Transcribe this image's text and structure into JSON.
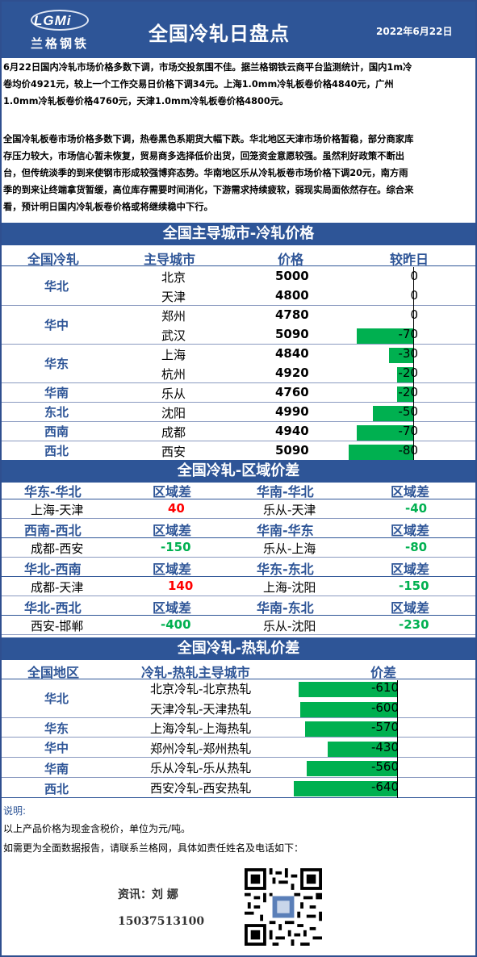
{
  "header": {
    "logo_text": "LGMi",
    "logo_cn": "兰格钢铁",
    "title": "全国冷轧日盘点",
    "date": "2022年6月22日"
  },
  "summary": {
    "p1_l1": "6月22日国内冷轧市场价格多数下调，市场交投氛围不佳。据兰格钢铁云商平台监测统计，国内1m冷",
    "p1_l2": "卷均价4921元，较上一个工作交易日价格下调34元。上海1.0mm冷轧板卷价格4840元，广州",
    "p1_l3": "1.0mm冷轧板卷价格4760元，天津1.0mm冷轧板卷价格4800元。",
    "p2_l1": "全国冷轧板卷市场价格多数下调，热卷黑色系期货大幅下跌。华北地区天津市场价格暂稳，部分商家库",
    "p2_l2": "存压力较大，市场信心暂未恢复，贸易商多选择低价出货，回笼资金意愿较强。虽然利好政策不断出",
    "p2_l3": "台，但传统淡季的到来使钢市形成较强博弈态势。华南地区乐从冷轧板卷市场价格下调20元，南方雨",
    "p2_l4": "季的到来让终端拿货暂缓，高位库存需要时间消化，下游需求持续疲软，弱现实局面依然存在。综合来",
    "p2_l5": "看，预计明日国内冷轧板卷价格或将继续稳中下行。"
  },
  "prices": {
    "section_title": "全国主导城市-冷轧价格",
    "headers": [
      "全国冷轧",
      "主导城市",
      "价格",
      "较昨日"
    ],
    "regions": [
      "华北",
      "华中",
      "华东",
      "华南",
      "东北",
      "西南",
      "西北"
    ],
    "rows": [
      {
        "city": "北京",
        "price": "5000",
        "change": "0",
        "value": 0
      },
      {
        "city": "天津",
        "price": "4800",
        "change": "0",
        "value": 0
      },
      {
        "city": "郑州",
        "price": "4780",
        "change": "0",
        "value": 0
      },
      {
        "city": "武汉",
        "price": "5090",
        "change": "-70",
        "value": -70
      },
      {
        "city": "上海",
        "price": "4840",
        "change": "-30",
        "value": -30
      },
      {
        "city": "杭州",
        "price": "4920",
        "change": "-20",
        "value": -20
      },
      {
        "city": "乐从",
        "price": "4760",
        "change": "-20",
        "value": -20
      },
      {
        "city": "沈阳",
        "price": "4990",
        "change": "-50",
        "value": -50
      },
      {
        "city": "成都",
        "price": "4940",
        "change": "-70",
        "value": -70
      },
      {
        "city": "西安",
        "price": "5090",
        "change": "-80",
        "value": -80
      }
    ]
  },
  "spreads": {
    "section_title": "全国冷轧-区域价差",
    "label": "区域差",
    "blocks": [
      {
        "left_head": "华东-华北",
        "left_pair": "上海-天津",
        "left_value": "40",
        "right_head": "华南-华北",
        "right_pair": "乐从-天津",
        "right_value": "-40"
      },
      {
        "left_head": "西南-西北",
        "left_pair": "成都-西安",
        "left_value": "-150",
        "right_head": "华南-华东",
        "right_pair": "乐从-上海",
        "right_value": "-80"
      },
      {
        "left_head": "华北-西南",
        "left_pair": "成都-天津",
        "left_value": "140",
        "right_head": "华东-东北",
        "right_pair": "上海-沈阳",
        "right_value": "-150"
      },
      {
        "left_head": "华北-西北",
        "left_pair": "西安-邯郸",
        "left_value": "-400",
        "right_head": "华南-东北",
        "right_pair": "乐从-沈阳",
        "right_value": "-230"
      }
    ],
    "colors": {
      "positive": "#ff0000",
      "negative": "#00b050"
    }
  },
  "hot_cold": {
    "section_title": "全国冷轧-热轧价差",
    "headers": [
      "全国地区",
      "冷轧-热轧主导城市",
      "价差"
    ],
    "regions": [
      "华北",
      "华东",
      "华中",
      "华南",
      "西北"
    ],
    "rows": [
      {
        "pair": "北京冷轧-北京热轧",
        "spread": "-610",
        "value": -610
      },
      {
        "pair": "天津冷轧-天津热轧",
        "spread": "-600",
        "value": -600
      },
      {
        "pair": "上海冷轧-上海热轧",
        "spread": "-570",
        "value": -570
      },
      {
        "pair": "郑州冷轧-郑州热轧",
        "spread": "-430",
        "value": -430
      },
      {
        "pair": "乐从冷轧-乐从热轧",
        "spread": "-560",
        "value": -560
      },
      {
        "pair": "西安冷轧-西安热轧",
        "spread": "-640",
        "value": -640
      }
    ]
  },
  "notes": {
    "title": "说明:",
    "line1": "以上产品价格为现金含税价，单位为元/吨。",
    "line2": "如需更为全面数据报告，请联系兰格网，具体如责任姓名及电话如下：",
    "contact_label": "资讯：刘 娜",
    "phone": "15037513100",
    "qr": "qr-code"
  },
  "colors": {
    "header_blue": "#2e5597",
    "bar_green": "#00b050"
  }
}
